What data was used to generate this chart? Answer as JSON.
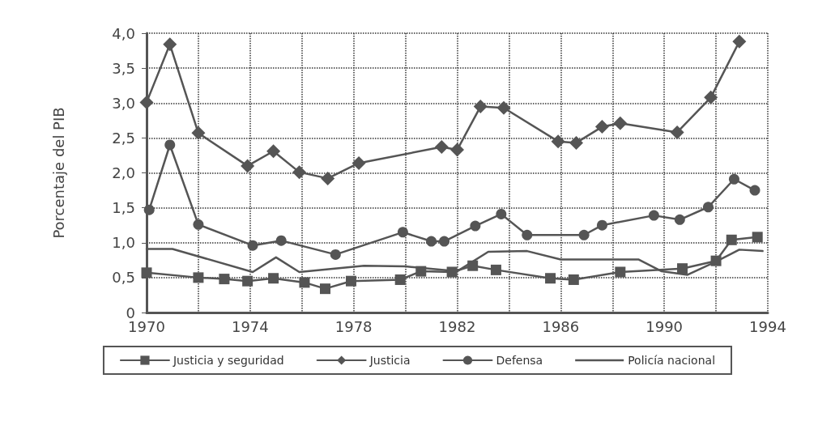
{
  "chart_data": {
    "type": "line",
    "ylabel": "Porcentaje del PIB",
    "xlim": [
      1970,
      1994
    ],
    "xticks": [
      1970,
      {
        "value": 1972,
        "label": null
      },
      1974,
      {
        "value": 1976,
        "label": null
      },
      1978,
      {
        "value": 1980,
        "label": null
      },
      1982,
      {
        "value": 1984,
        "label": null
      },
      1986,
      {
        "value": 1988,
        "label": null
      },
      1990,
      {
        "value": 1992,
        "label": null
      },
      1994
    ],
    "ylim": [
      0,
      4
    ],
    "yticks": [
      0,
      {
        "value": 0.5,
        "label": "0,5"
      },
      {
        "value": 1,
        "label": "1,0"
      },
      {
        "value": 1.5,
        "label": "1,5"
      },
      {
        "value": 2,
        "label": "2,0"
      },
      {
        "value": 2.5,
        "label": "2,5"
      },
      {
        "value": 3,
        "label": "3,0"
      },
      {
        "value": 3.5,
        "label": "3,5"
      },
      {
        "value": 4,
        "label": "4,0"
      }
    ],
    "grid": true,
    "legend": "bottom",
    "line_style": "solid",
    "series": [
      {
        "name": "Justicia y seguridad",
        "color": "#555555",
        "marker": "square",
        "x": [
          1970,
          1972,
          1973,
          1973.9,
          1974.9,
          1976.1,
          1976.9,
          1977.9,
          1979.8,
          1980.6,
          1981.8,
          1982.6,
          1983.5,
          1985.6,
          1986.5,
          1988.3,
          1990.7,
          1992,
          1992.6,
          1993.6
        ],
        "values": [
          0.57,
          0.5,
          0.48,
          0.45,
          0.49,
          0.43,
          0.34,
          0.45,
          0.47,
          0.59,
          0.58,
          0.67,
          0.61,
          0.49,
          0.47,
          0.58,
          0.63,
          0.74,
          1.04,
          1.08
        ]
      },
      {
        "name": "Justicia",
        "color": "#555555",
        "marker": "diamond",
        "x": [
          1970,
          1970.9,
          1972,
          1973.9,
          1974.9,
          1975.9,
          1977,
          1978.2,
          1981.4,
          1982,
          1982.9,
          1983.8,
          1985.9,
          1986.6,
          1987.6,
          1988.3,
          1990.5,
          1991.8,
          1992.9
        ],
        "values": [
          3.01,
          3.84,
          2.57,
          2.1,
          2.31,
          2.01,
          1.92,
          2.14,
          2.37,
          2.33,
          2.95,
          2.93,
          2.45,
          2.43,
          2.66,
          2.71,
          2.58,
          3.08,
          3.88
        ]
      },
      {
        "name": "Defensa",
        "color": "#555555",
        "marker": "circle",
        "x": [
          1970.1,
          1970.9,
          1972,
          1974.1,
          1975.2,
          1977.3,
          1979.9,
          1981,
          1981.5,
          1982.7,
          1983.7,
          1984.7,
          1986.9,
          1987.6,
          1989.6,
          1990.6,
          1991.7,
          1992.7,
          1993.5
        ],
        "values": [
          1.47,
          2.4,
          1.26,
          0.96,
          1.03,
          0.83,
          1.15,
          1.02,
          1.02,
          1.24,
          1.41,
          1.11,
          1.11,
          1.25,
          1.39,
          1.33,
          1.51,
          1.91,
          1.75
        ]
      },
      {
        "name": "Policía nacional",
        "color": "#555555",
        "marker": "none",
        "x": [
          1970,
          1971,
          1974.1,
          1975,
          1975.9,
          1978.4,
          1980,
          1982,
          1983.2,
          1984.7,
          1986,
          1989,
          1989.9,
          1990.9,
          1992,
          1992.9,
          1993.8
        ],
        "values": [
          0.91,
          0.91,
          0.58,
          0.79,
          0.58,
          0.67,
          0.66,
          0.59,
          0.87,
          0.88,
          0.76,
          0.76,
          0.59,
          0.54,
          0.73,
          0.9,
          0.88
        ]
      }
    ]
  }
}
